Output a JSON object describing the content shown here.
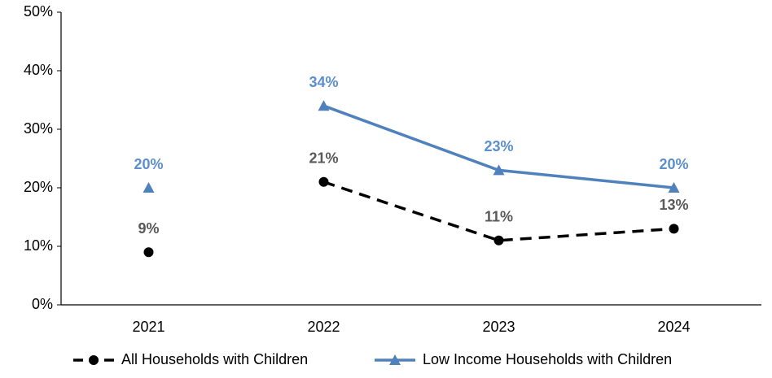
{
  "chart_data": {
    "type": "line",
    "categories": [
      "2021",
      "2022",
      "2023",
      "2024"
    ],
    "gap_before": "2022",
    "series": [
      {
        "name": "All Households with Children",
        "color": "#000000",
        "label_color": "#595959",
        "dash": true,
        "marker": "circle",
        "values": [
          9,
          21,
          11,
          13
        ],
        "value_labels": [
          "9%",
          "21%",
          "11%",
          "13%"
        ]
      },
      {
        "name": "Low Income Households with Children",
        "color": "#4f81bd",
        "label_color": "#5b8fd0",
        "dash": false,
        "marker": "triangle",
        "values": [
          20,
          34,
          23,
          20
        ],
        "value_labels": [
          "20%",
          "34%",
          "23%",
          "20%"
        ]
      }
    ],
    "ylim": [
      0,
      50
    ],
    "yticks": [
      {
        "value": 0,
        "label": "0%"
      },
      {
        "value": 10,
        "label": "10%"
      },
      {
        "value": 20,
        "label": "20%"
      },
      {
        "value": 30,
        "label": "30%"
      },
      {
        "value": 40,
        "label": "40%"
      },
      {
        "value": 50,
        "label": "50%"
      }
    ],
    "grid": false
  }
}
